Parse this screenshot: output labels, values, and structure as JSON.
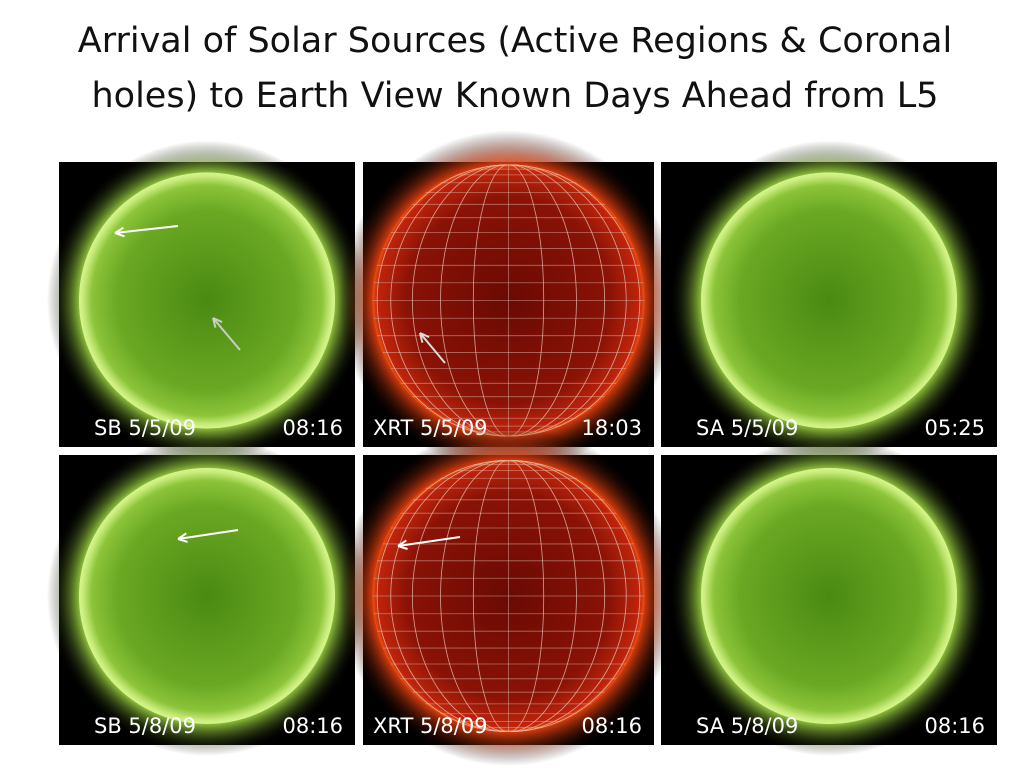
{
  "title_lines": [
    "Arrival of Solar Sources (Active Regions & Coronal",
    "holes) to Earth View Known Days Ahead from L5"
  ],
  "panels": [
    {
      "label": "SB 5/5/09",
      "time": "08:16",
      "color": "#6aa823",
      "grid": false
    },
    {
      "label": "XRT 5/5/09",
      "time": "18:03",
      "color": "#c0220c",
      "grid": true
    },
    {
      "label": "SA 5/5/09",
      "time": "05:25",
      "color": "#6aa823",
      "grid": false
    },
    {
      "label": "SB 5/8/09",
      "time": "08:16",
      "color": "#6aa823",
      "grid": false
    },
    {
      "label": "XRT 5/8/09",
      "time": "08:16",
      "color": "#c0220c",
      "grid": true
    },
    {
      "label": "SA 5/8/09",
      "time": "08:16",
      "color": "#6aa823",
      "grid": false
    }
  ]
}
